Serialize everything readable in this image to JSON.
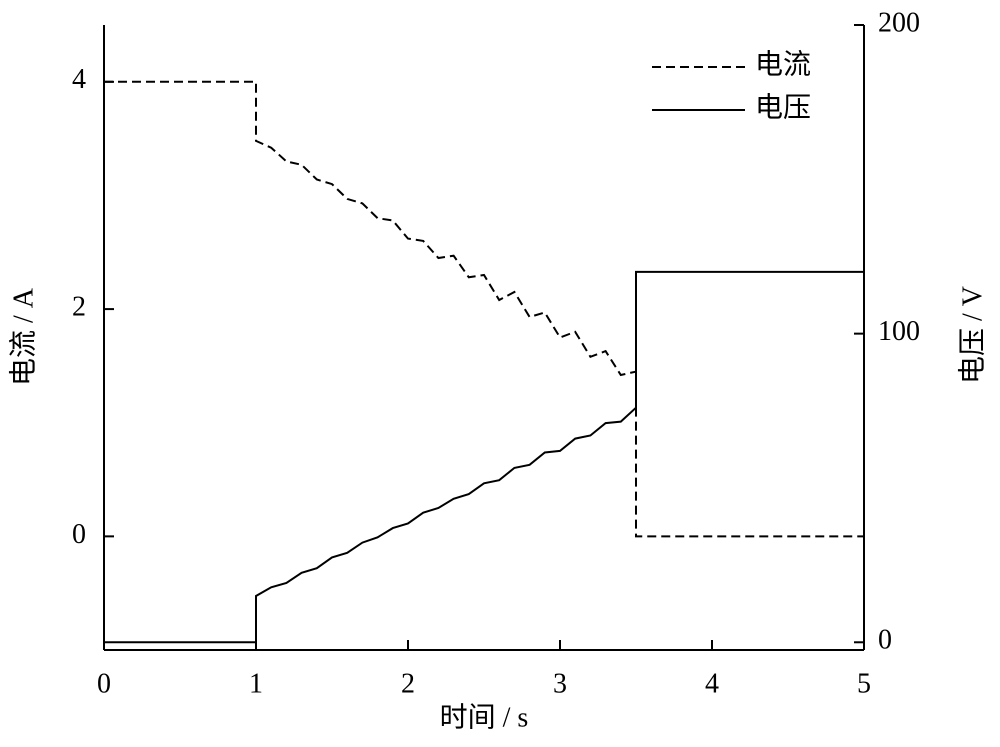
{
  "chart_data": {
    "type": "line",
    "x_label": "时间 / s",
    "y_label": "电流 / A",
    "y2_label": "电压 / V",
    "x": [
      0,
      1,
      1,
      1.1,
      1.2,
      1.3,
      1.4,
      1.5,
      1.6,
      1.7,
      1.8,
      1.9,
      2,
      2.1,
      2.2,
      2.3,
      2.4,
      2.5,
      2.6,
      2.7,
      2.8,
      2.9,
      3,
      3.1,
      3.2,
      3.3,
      3.4,
      3.5,
      3.5,
      5
    ],
    "series": [
      {
        "name": "电流",
        "color": "#000000",
        "dash": true,
        "axis": "y",
        "values": [
          4,
          4,
          3.48,
          3.42,
          3.3,
          3.27,
          3.14,
          3.1,
          2.97,
          2.93,
          2.8,
          2.78,
          2.62,
          2.6,
          2.45,
          2.47,
          2.28,
          2.3,
          2.08,
          2.15,
          1.93,
          1.97,
          1.75,
          1.8,
          1.58,
          1.63,
          1.42,
          1.45,
          0,
          0
        ]
      },
      {
        "name": "电压",
        "color": "#000000",
        "dash": false,
        "axis": "y2",
        "values": [
          0,
          0,
          15,
          17.8,
          19.2,
          22.5,
          24,
          27.5,
          29,
          32.3,
          34,
          37,
          38.5,
          42,
          43.5,
          46.5,
          48,
          51.5,
          52.5,
          56.5,
          57.5,
          61.5,
          62,
          66,
          67,
          71,
          71.5,
          76,
          120,
          120
        ]
      }
    ],
    "xlim": [
      0,
      5
    ],
    "xticks": [
      0,
      1,
      2,
      3,
      4,
      5
    ],
    "ylim": [
      -1,
      4.5
    ],
    "yticks": [
      0,
      2,
      4
    ],
    "y2lim": [
      -2.5,
      200
    ],
    "y2ticks": [
      0,
      100,
      200
    ],
    "legend": "upper right",
    "grid": false
  }
}
